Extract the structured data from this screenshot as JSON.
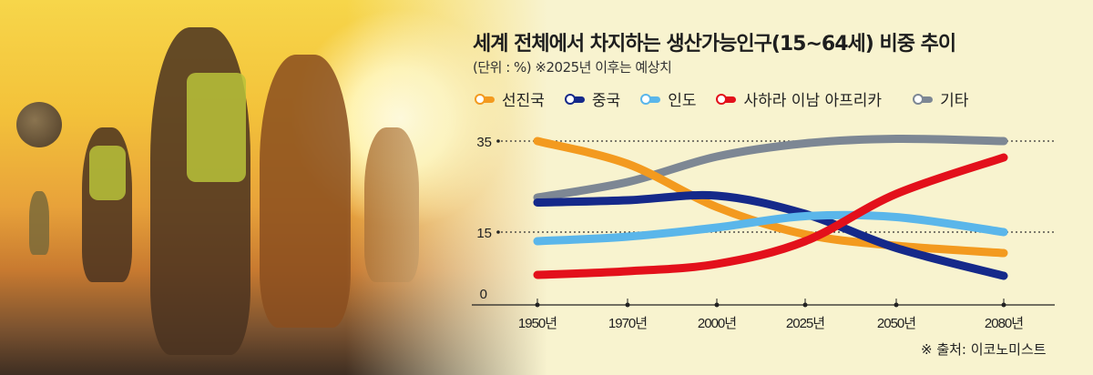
{
  "header": {
    "title": "세계 전체에서 차지하는 생산가능인구(15~64세) 비중 추이",
    "subtitle": "(단위 : %) ※2025년 이후는 예상치"
  },
  "legend": [
    {
      "label": "선진국",
      "color": "#f39a1f"
    },
    {
      "label": "중국",
      "color": "#15298a"
    },
    {
      "label": "인도",
      "color": "#5ab6ea"
    },
    {
      "label": "사하라 이남 아프리카",
      "color": "#e3101b"
    },
    {
      "label": "기타",
      "color": "#7d8794"
    }
  ],
  "source": "※ 출처: 이코노미스트",
  "chart_data": {
    "type": "line",
    "title": "세계 전체에서 차지하는 생산가능인구(15~64세) 비중 추이",
    "subtitle": "(단위 : %) ※2025년 이후는 예상치",
    "xlabel": "",
    "ylabel": "%",
    "x": [
      "1950년",
      "1970년",
      "2000년",
      "2025년",
      "2050년",
      "2080년"
    ],
    "y_ticks": [
      0,
      15,
      35
    ],
    "ylim": [
      0,
      38
    ],
    "grid": "dotted lines at 15 and 35",
    "legend_position": "top",
    "series": [
      {
        "name": "선진국",
        "color": "#f39a1f",
        "values": [
          35,
          30,
          20.5,
          14.5,
          12,
          10.4
        ]
      },
      {
        "name": "중국",
        "color": "#15298a",
        "values": [
          21.5,
          22,
          23,
          19,
          11.5,
          5.4
        ]
      },
      {
        "name": "인도",
        "color": "#5ab6ea",
        "values": [
          13,
          14,
          16,
          18.5,
          18.3,
          15
        ]
      },
      {
        "name": "사하라 이남 아프리카",
        "color": "#e3101b",
        "values": [
          5.6,
          6.4,
          8,
          13,
          23.4,
          31.4
        ]
      },
      {
        "name": "기타",
        "color": "#7d8794",
        "values": [
          22.6,
          26,
          31.6,
          34.5,
          35.5,
          35
        ]
      }
    ]
  }
}
